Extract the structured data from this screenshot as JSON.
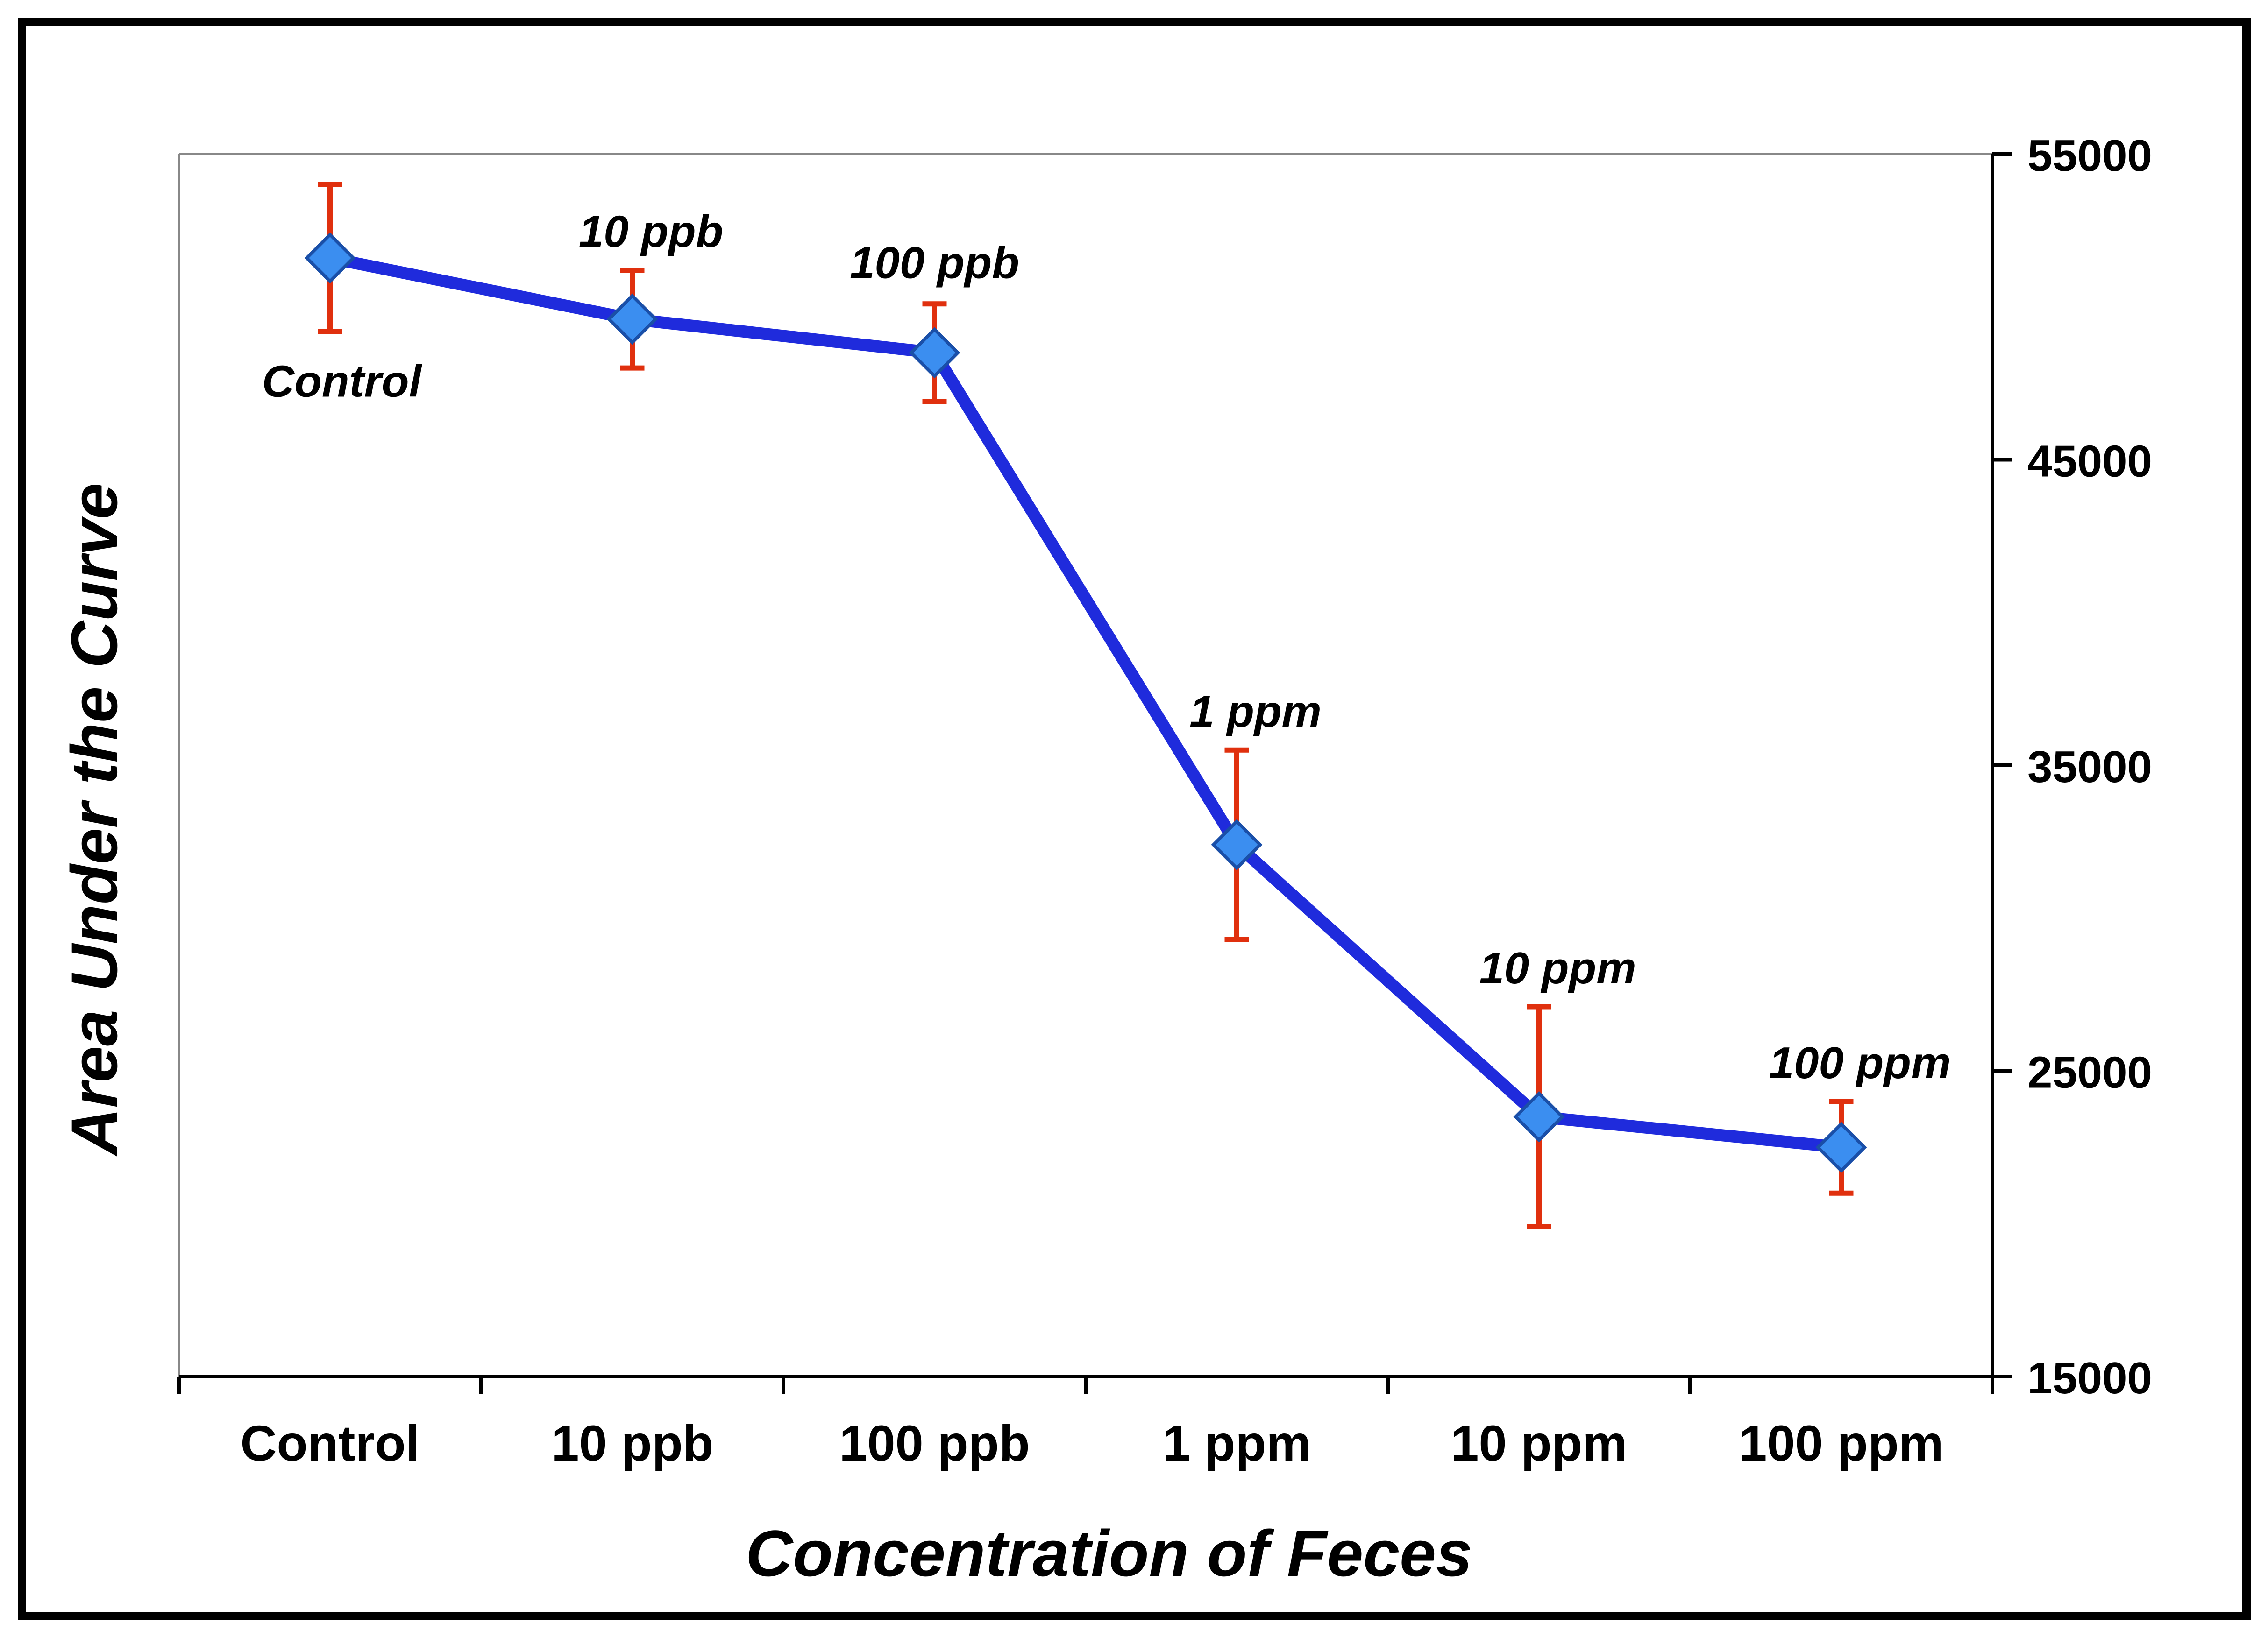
{
  "chart_data": {
    "type": "line",
    "categories": [
      "Control",
      "10 ppb",
      "100 ppb",
      "1 ppm",
      "10 ppm",
      "100 ppm"
    ],
    "series": [
      {
        "values": [
          51600,
          49600,
          48500,
          32400,
          23500,
          22500
        ],
        "error": [
          2400,
          1600,
          1600,
          3100,
          3600,
          1500
        ]
      }
    ],
    "point_labels": [
      "Control",
      "10 ppb",
      "100 ppb",
      "1 ppm",
      "10 ppm",
      "100 ppm"
    ],
    "xlabel": "Concentration of Feces",
    "ylabel": "Area Under the Curve",
    "ylim": [
      15000,
      55000
    ],
    "yticks": [
      15000,
      25000,
      35000,
      45000,
      55000
    ],
    "y_axis_side": "right",
    "grid": false,
    "colors": {
      "line": "#1f2bdc",
      "marker": "#3b8ef0",
      "error_bar": "#e0300e",
      "axis": "#000000",
      "frame_axis": "#888888"
    }
  }
}
